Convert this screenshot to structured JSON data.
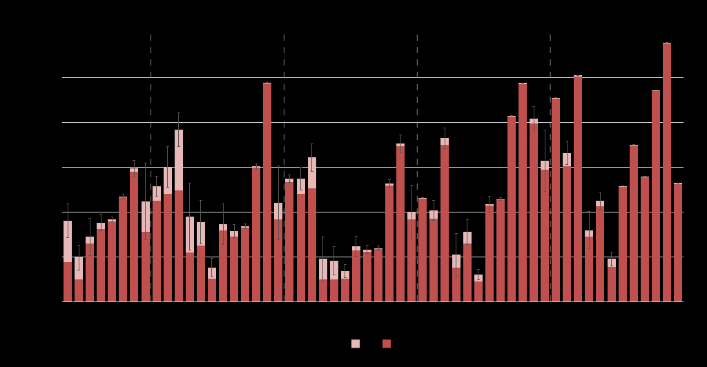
{
  "chart_data": {
    "type": "bar",
    "stacked": true,
    "grid": true,
    "tick_labels": false,
    "legend": "bottom",
    "ylim": [
      0,
      6
    ],
    "yticks": [
      0,
      1,
      2,
      3,
      4,
      5,
      6
    ],
    "group_sizes": [
      8,
      12,
      12,
      12,
      12
    ],
    "categories": [
      null,
      null,
      null,
      null,
      null,
      null,
      null,
      null,
      null,
      null,
      null,
      null,
      null,
      null,
      null,
      null,
      null,
      null,
      null,
      null,
      null,
      null,
      null,
      null,
      null,
      null,
      null,
      null,
      null,
      null,
      null,
      null,
      null,
      null,
      null,
      null,
      null,
      null,
      null,
      null,
      null,
      null,
      null,
      null,
      null,
      null,
      null,
      null,
      null,
      null,
      null,
      null,
      null,
      null,
      null,
      null
    ],
    "series": [
      {
        "color": "#c0504d",
        "values": [
          0.88,
          0.49,
          1.29,
          1.62,
          1.78,
          2.32,
          2.89,
          1.55,
          2.25,
          2.4,
          2.48,
          1.09,
          1.25,
          0.51,
          1.58,
          1.45,
          1.65,
          2.98,
          4.86,
          1.83,
          2.66,
          2.4,
          2.52,
          0.49,
          0.49,
          0.51,
          1.14,
          1.11,
          1.17,
          2.58,
          3.46,
          1.83,
          2.29,
          1.85,
          3.49,
          0.75,
          1.29,
          0.45,
          2.14,
          2.26,
          4.12,
          4.85,
          3.97,
          2.94,
          4.52,
          3.02,
          5.02,
          1.45,
          2.12,
          0.77,
          2.55,
          3.48,
          2.77,
          4.69,
          5.75,
          2.62
        ]
      },
      {
        "color": "#e6b9b8",
        "values": [
          0.92,
          0.49,
          0.15,
          0.14,
          0.05,
          0.02,
          0.08,
          0.68,
          0.32,
          0.6,
          1.35,
          0.8,
          0.52,
          0.25,
          0.14,
          0.12,
          0.03,
          0.03,
          0.02,
          0.37,
          0.08,
          0.34,
          0.69,
          0.46,
          0.42,
          0.17,
          0.09,
          0.05,
          0.02,
          0.05,
          0.06,
          0.17,
          0.02,
          0.18,
          0.15,
          0.29,
          0.26,
          0.15,
          0.03,
          0.02,
          0.02,
          0.02,
          0.11,
          0.2,
          0.02,
          0.29,
          0.02,
          0.14,
          0.12,
          0.18,
          0.02,
          0.02,
          0.02,
          0.02,
          0.02,
          0.02
        ],
        "errors": [
          0.37,
          0.28,
          0.42,
          0.18,
          0.05,
          0.05,
          0.18,
          0.85,
          0.23,
          0.45,
          0.38,
          0.75,
          0.49,
          0.2,
          0.45,
          0.15,
          0.05,
          0.06,
          0,
          0.83,
          0.09,
          0.25,
          0.31,
          0.49,
          0.32,
          0.15,
          0.22,
          0.09,
          0.05,
          0.09,
          0.2,
          0.6,
          0,
          0.22,
          0.23,
          0.48,
          0.28,
          0.12,
          0.17,
          0.03,
          0,
          0,
          0.26,
          0.69,
          0,
          0.26,
          0,
          0.42,
          0.2,
          0.15,
          0,
          0,
          0,
          0,
          0,
          0
        ]
      }
    ]
  }
}
